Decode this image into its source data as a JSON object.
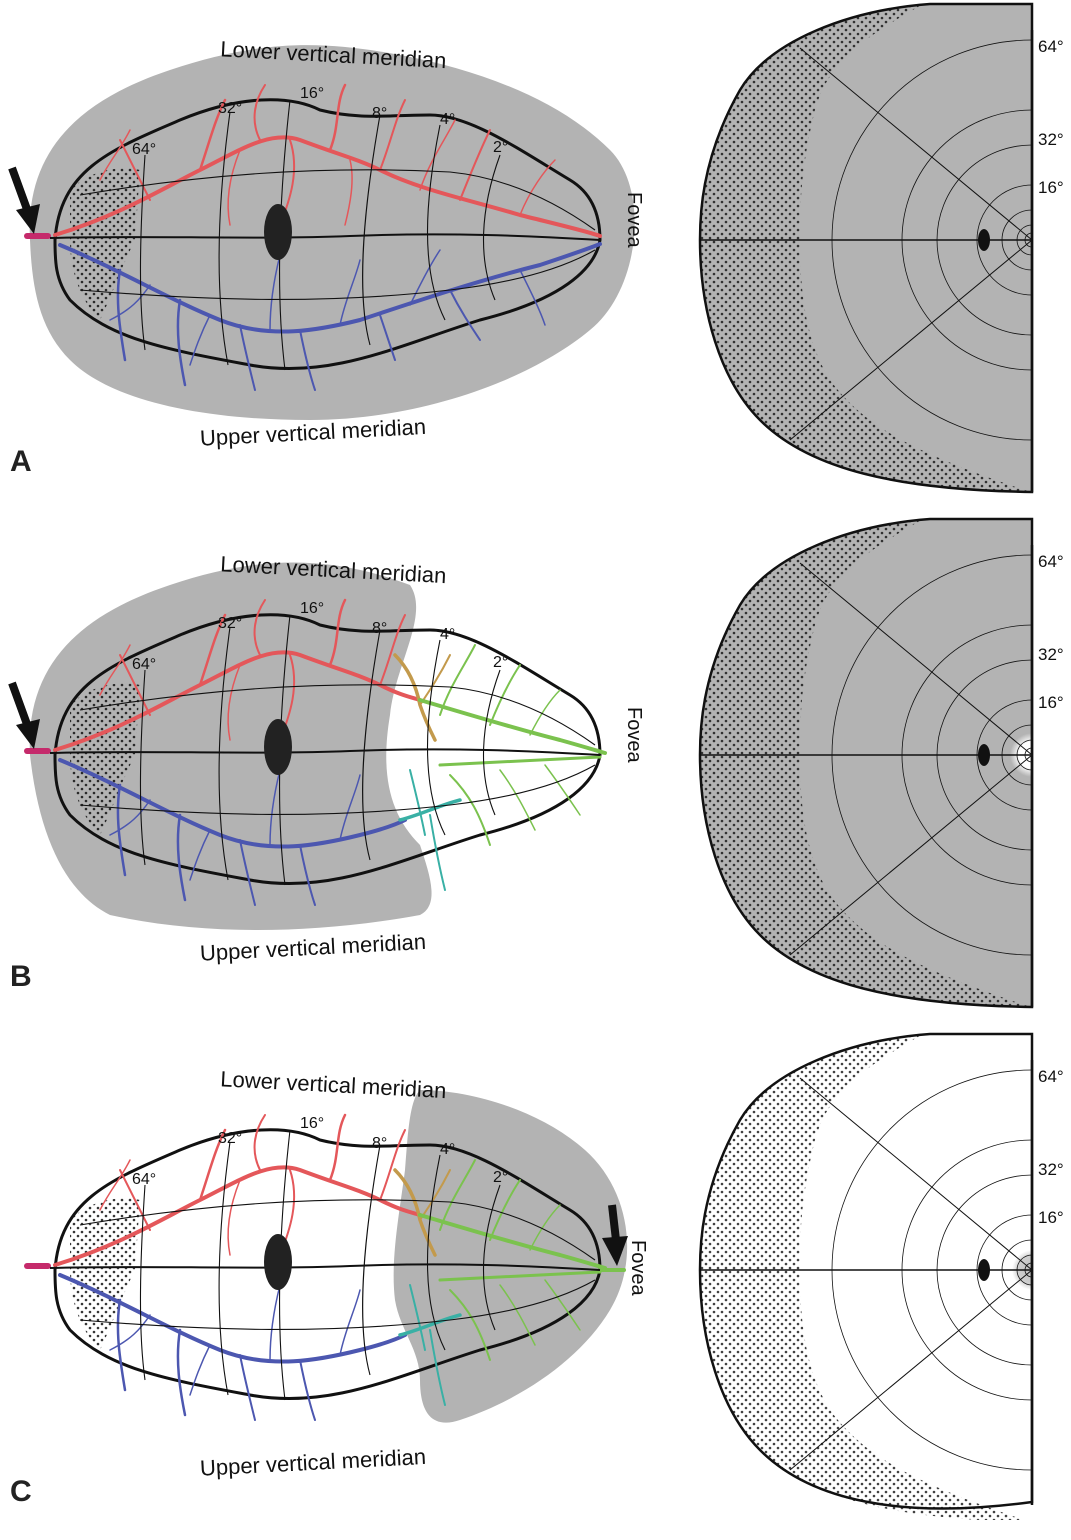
{
  "colors": {
    "upper_cortex_red": "#e4575a",
    "lower_cortex_blue": "#4c57b0",
    "foveal_green": "#7bc24e",
    "transition_teal": "#39b0a5",
    "transition_tan": "#c39a4c",
    "active_region_gray": "#b3b3b3",
    "artery_stub_magenta": "#c52a6b",
    "outline_black": "#111111"
  },
  "panels": [
    {
      "id": "A",
      "label": "A",
      "labels": {
        "top": "Lower vertical meridian",
        "bottom": "Upper vertical meridian",
        "fovea": "Fovea"
      },
      "eccentricity_labels": [
        "64°",
        "32°",
        "16°",
        "8°",
        "4°",
        "2°"
      ],
      "map_ecc_labels": [
        "64°",
        "32°",
        "16°"
      ],
      "arrows": [
        "occipital-pole-arrow"
      ],
      "state": "full-field-shaded"
    },
    {
      "id": "B",
      "label": "B",
      "labels": {
        "top": "Lower vertical meridian",
        "bottom": "Upper vertical meridian",
        "fovea": "Fovea"
      },
      "eccentricity_labels": [
        "64°",
        "32°",
        "16°",
        "8°",
        "4°",
        "2°"
      ],
      "map_ecc_labels": [
        "64°",
        "32°",
        "16°"
      ],
      "arrows": [
        "occipital-pole-arrow"
      ],
      "state": "foveal-sparing"
    },
    {
      "id": "C",
      "label": "C",
      "labels": {
        "top": "Lower vertical meridian",
        "bottom": "Upper vertical meridian",
        "fovea": "Fovea"
      },
      "eccentricity_labels": [
        "64°",
        "32°",
        "16°",
        "8°",
        "4°",
        "2°"
      ],
      "map_ecc_labels": [
        "64°",
        "32°",
        "16°"
      ],
      "arrows": [
        "fovea-arrow"
      ],
      "state": "central-only"
    }
  ]
}
